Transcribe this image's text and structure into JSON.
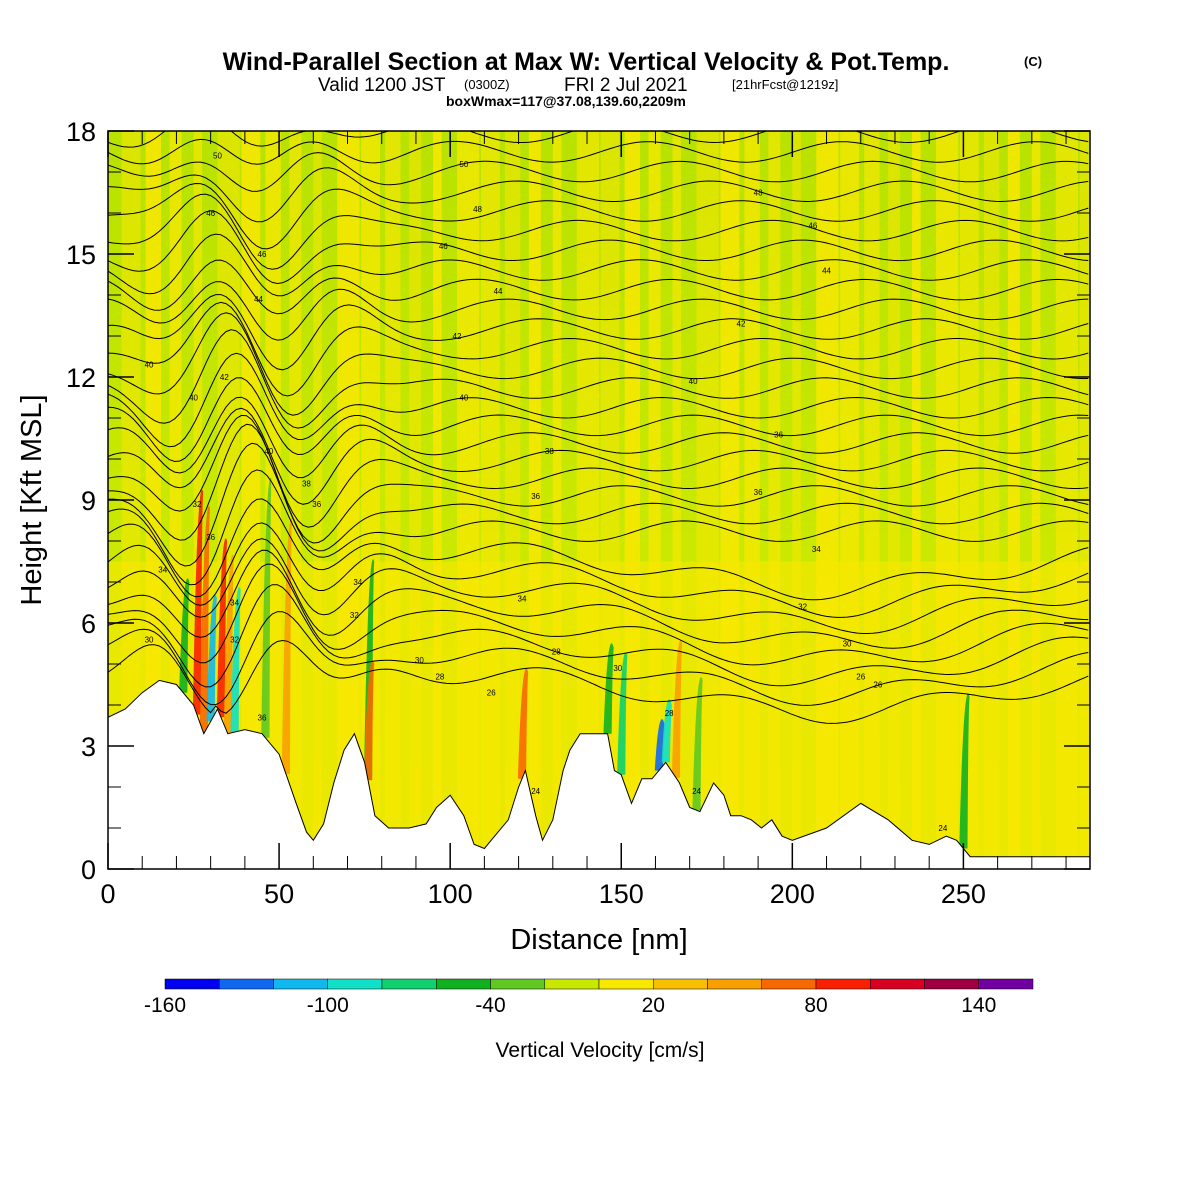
{
  "header": {
    "title_main": "Wind-Parallel Section at Max W: Vertical Velocity & Pot.Temp.",
    "title_mark": "(C)",
    "subtitle_valid": "Valid 1200 JST",
    "subtitle_utc": "(0300Z)",
    "subtitle_date": "FRI 2 Jul 2021",
    "subtitle_fcst": "[21hrFcst@1219z]",
    "subtitle_box": "boxWmax=117@37.08,139.60,2209m"
  },
  "chart_data": {
    "type": "heatmap",
    "title": "Wind-Parallel Section at Max W: Vertical Velocity & Pot.Temp.",
    "xlabel": "Distance [nm]",
    "ylabel": "Height [Kft MSL]",
    "xlim": [
      0,
      287
    ],
    "ylim": [
      0,
      18
    ],
    "x_ticks": [
      "0",
      "50",
      "100",
      "150",
      "200",
      "250"
    ],
    "x_tick_values": [
      0,
      50,
      100,
      150,
      200,
      250
    ],
    "y_ticks": [
      "0",
      "3",
      "6",
      "9",
      "12",
      "15",
      "18"
    ],
    "y_tick_values": [
      0,
      3,
      6,
      9,
      12,
      15,
      18
    ],
    "background_field": "vertical velocity (shaded)",
    "contour_field": "potential temperature (black lines)",
    "terrain_profile": [
      [
        0,
        3.7
      ],
      [
        5,
        3.9
      ],
      [
        10,
        4.3
      ],
      [
        15,
        4.6
      ],
      [
        20,
        4.5
      ],
      [
        25,
        4.0
      ],
      [
        28,
        3.3
      ],
      [
        32,
        3.9
      ],
      [
        35,
        3.3
      ],
      [
        40,
        3.4
      ],
      [
        45,
        3.3
      ],
      [
        50,
        2.8
      ],
      [
        55,
        1.6
      ],
      [
        58,
        0.9
      ],
      [
        60,
        0.7
      ],
      [
        63,
        1.1
      ],
      [
        66,
        2.1
      ],
      [
        69,
        2.9
      ],
      [
        72,
        3.3
      ],
      [
        75,
        2.6
      ],
      [
        78,
        1.3
      ],
      [
        82,
        1.0
      ],
      [
        88,
        1.0
      ],
      [
        93,
        1.1
      ],
      [
        96,
        1.5
      ],
      [
        100,
        1.8
      ],
      [
        104,
        1.3
      ],
      [
        107,
        0.6
      ],
      [
        110,
        0.5
      ],
      [
        113,
        0.8
      ],
      [
        117,
        1.2
      ],
      [
        120,
        2.0
      ],
      [
        122,
        2.4
      ],
      [
        125,
        1.3
      ],
      [
        127,
        0.7
      ],
      [
        130,
        1.2
      ],
      [
        133,
        2.4
      ],
      [
        135,
        2.9
      ],
      [
        138,
        3.3
      ],
      [
        142,
        3.3
      ],
      [
        146,
        3.3
      ],
      [
        148,
        2.4
      ],
      [
        150,
        2.3
      ],
      [
        153,
        1.6
      ],
      [
        156,
        2.2
      ],
      [
        159,
        2.2
      ],
      [
        163,
        2.6
      ],
      [
        167,
        2.1
      ],
      [
        170,
        1.5
      ],
      [
        173,
        1.4
      ],
      [
        177,
        2.1
      ],
      [
        180,
        1.8
      ],
      [
        182,
        1.3
      ],
      [
        185,
        1.3
      ],
      [
        188,
        1.2
      ],
      [
        191,
        1.0
      ],
      [
        194,
        1.2
      ],
      [
        197,
        0.8
      ],
      [
        200,
        0.7
      ],
      [
        210,
        1.0
      ],
      [
        220,
        1.6
      ],
      [
        228,
        1.2
      ],
      [
        235,
        0.7
      ],
      [
        240,
        0.6
      ],
      [
        245,
        0.8
      ],
      [
        248,
        0.7
      ],
      [
        252,
        0.3
      ],
      [
        260,
        0.3
      ],
      [
        270,
        0.3
      ],
      [
        287,
        0.3
      ]
    ],
    "theta_contour_labels": [
      "24",
      "26",
      "28",
      "30",
      "32",
      "34",
      "36",
      "38",
      "40",
      "42",
      "44",
      "46",
      "48",
      "50"
    ],
    "colorbar": {
      "label": "Vertical Velocity [cm/s]",
      "tick_labels": [
        "-160",
        "-100",
        "-40",
        "20",
        "80",
        "140"
      ],
      "tick_values": [
        -160,
        -100,
        -40,
        20,
        80,
        140
      ],
      "range": [
        -160,
        160
      ],
      "colors": [
        "#0000f0",
        "#1068f0",
        "#10b8f0",
        "#10e0c8",
        "#10d070",
        "#10b020",
        "#60c820",
        "#c8e800",
        "#f8e800",
        "#f8c000",
        "#f8a000",
        "#f86800",
        "#f82000",
        "#d80020",
        "#a00040",
        "#7000a0"
      ]
    },
    "grid": false
  }
}
